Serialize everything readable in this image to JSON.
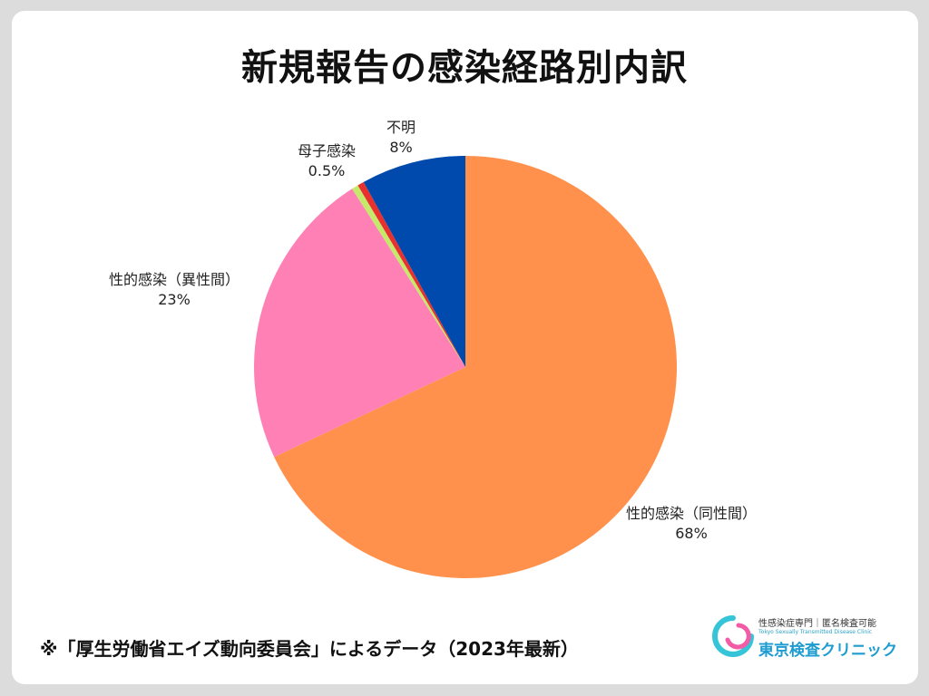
{
  "title": "新規報告の感染経路別内訳",
  "footnote": "※「厚生労働省エイズ動向委員会」によるデータ（2023年最新）",
  "brand": {
    "tagline": "性感染症専門｜匿名検査可能",
    "english": "Tokyo Sexually Transmitted Disease Clinic",
    "name": "東京検査クリニック",
    "icon": "clinic-logo-ring",
    "colors": {
      "cyan": "#35c4d8",
      "pink": "#f25ca6",
      "blue": "#1e9cd0"
    }
  },
  "chart_data": {
    "type": "pie",
    "start": "12 o'clock, clockwise",
    "slices": [
      {
        "label": "性的感染（同性間）",
        "value": 68,
        "value_label": "68%",
        "color": "#ff914d"
      },
      {
        "label": "性的感染（異性間）",
        "value": 23,
        "value_label": "23%",
        "color": "#ff80b5"
      },
      {
        "label": "",
        "value": 0.5,
        "value_label": "",
        "color": "#c5ea6b"
      },
      {
        "label": "母子感染",
        "value": 0.5,
        "value_label": "0.5%",
        "color": "#e8302f"
      },
      {
        "label": "不明",
        "value": 8,
        "value_label": "8%",
        "color": "#004aad"
      }
    ]
  }
}
